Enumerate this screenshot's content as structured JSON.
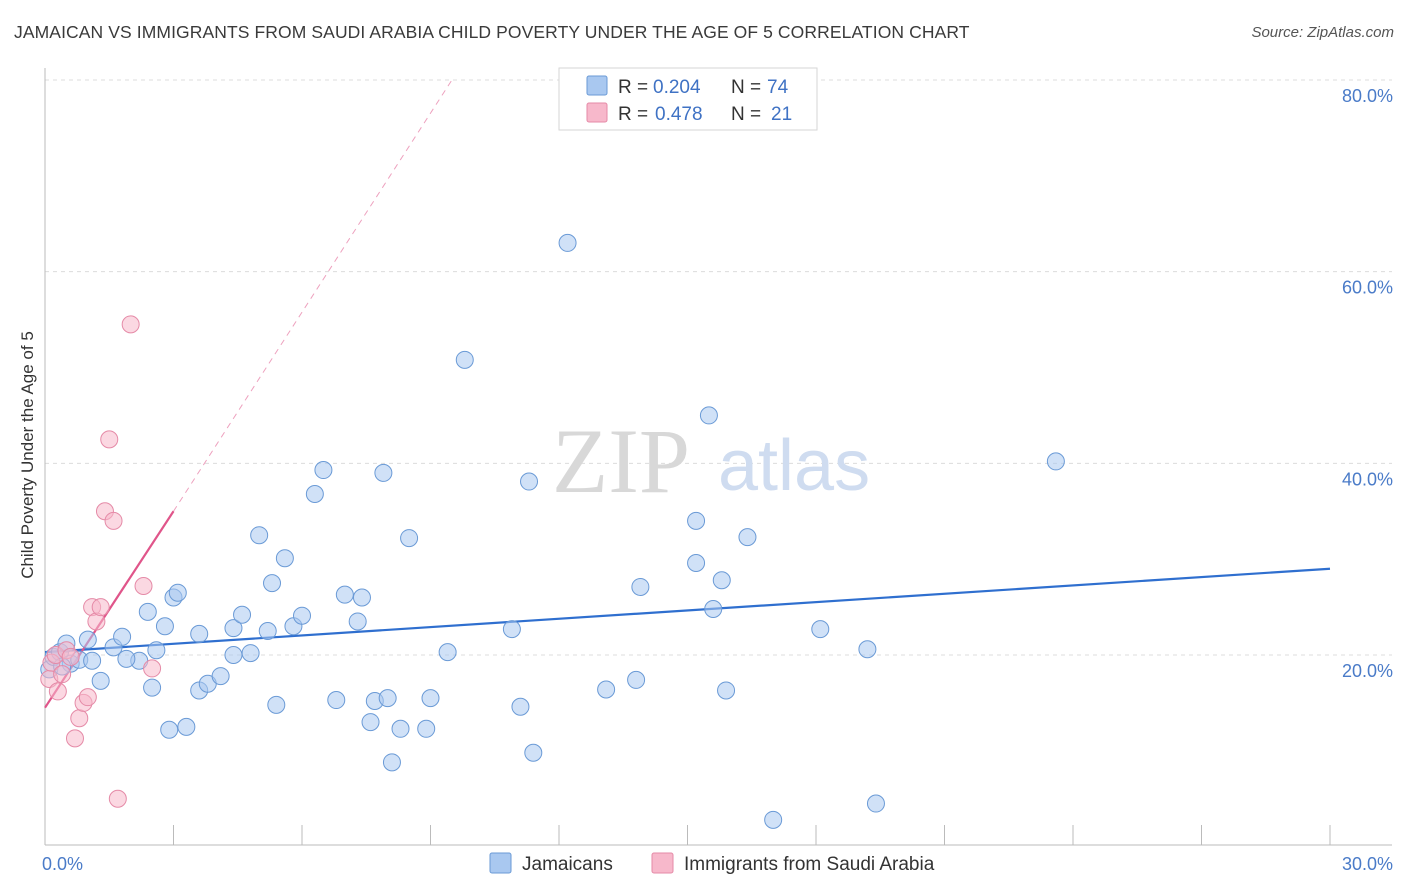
{
  "chart_data": {
    "type": "scatter",
    "title": "JAMAICAN VS IMMIGRANTS FROM SAUDI ARABIA CHILD POVERTY UNDER THE AGE OF 5 CORRELATION CHART",
    "source": "Source: ZipAtlas.com",
    "xlabel": "",
    "ylabel": "Child Poverty Under the Age of 5",
    "xlim": [
      0,
      30
    ],
    "ylim": [
      0,
      80
    ],
    "x_tick_labels": [
      {
        "value": 0,
        "label": "0.0%"
      },
      {
        "value": 30,
        "label": "30.0%"
      }
    ],
    "y_tick_labels": [
      {
        "value": 20,
        "label": "20.0%"
      },
      {
        "value": 40,
        "label": "40.0%"
      },
      {
        "value": 60,
        "label": "60.0%"
      },
      {
        "value": 80,
        "label": "80.0%"
      }
    ],
    "legend": [
      {
        "series": "Jamaicans",
        "r_label": "R =",
        "r_value": "0.204",
        "n_label": "N =",
        "n_value": "74",
        "color": "#a9c8f0"
      },
      {
        "series": "Immigrants from Saudi Arabia",
        "r_label": "R =",
        "r_value": "0.478",
        "n_label": "N =",
        "n_value": "21",
        "color": "#f7b8cb"
      }
    ],
    "watermark": {
      "zip": "ZIP",
      "atlas": "atlas"
    },
    "series": [
      {
        "name": "Jamaicans",
        "color": "#a9c8f0",
        "stroke": "#6a9ad6",
        "trend": {
          "x0": 0,
          "y0": 20.3,
          "x1": 30,
          "y1": 29.0,
          "color": "#2f6fcf"
        },
        "points": [
          [
            0.1,
            18.5
          ],
          [
            0.2,
            19.8
          ],
          [
            0.35,
            20.3
          ],
          [
            0.5,
            21.2
          ],
          [
            0.6,
            19.1
          ],
          [
            0.8,
            19.5
          ],
          [
            1.0,
            21.6
          ],
          [
            1.1,
            19.4
          ],
          [
            1.3,
            17.3
          ],
          [
            1.6,
            20.8
          ],
          [
            1.8,
            21.9
          ],
          [
            2.2,
            19.4
          ],
          [
            2.4,
            24.5
          ],
          [
            2.5,
            16.6
          ],
          [
            2.6,
            20.5
          ],
          [
            2.8,
            23.0
          ],
          [
            2.9,
            12.2
          ],
          [
            3.0,
            26.0
          ],
          [
            3.1,
            26.5
          ],
          [
            3.3,
            12.5
          ],
          [
            3.6,
            22.2
          ],
          [
            3.6,
            16.3
          ],
          [
            3.8,
            17.0
          ],
          [
            4.1,
            17.8
          ],
          [
            4.4,
            22.8
          ],
          [
            4.4,
            20.0
          ],
          [
            4.6,
            24.2
          ],
          [
            4.8,
            20.2
          ],
          [
            5.0,
            32.5
          ],
          [
            5.2,
            22.5
          ],
          [
            5.3,
            27.5
          ],
          [
            5.4,
            14.8
          ],
          [
            5.6,
            30.1
          ],
          [
            5.8,
            23.0
          ],
          [
            6.0,
            24.1
          ],
          [
            6.3,
            36.8
          ],
          [
            6.5,
            39.3
          ],
          [
            6.8,
            15.3
          ],
          [
            7.0,
            26.3
          ],
          [
            7.3,
            23.5
          ],
          [
            7.4,
            26.0
          ],
          [
            7.6,
            13.0
          ],
          [
            7.7,
            15.2
          ],
          [
            7.9,
            39.0
          ],
          [
            8.0,
            15.5
          ],
          [
            8.1,
            8.8
          ],
          [
            8.3,
            12.3
          ],
          [
            8.5,
            32.2
          ],
          [
            8.9,
            12.3
          ],
          [
            9.0,
            15.5
          ],
          [
            9.4,
            20.3
          ],
          [
            9.8,
            50.8
          ],
          [
            10.9,
            22.7
          ],
          [
            11.1,
            14.6
          ],
          [
            11.3,
            38.1
          ],
          [
            11.4,
            9.8
          ],
          [
            12.2,
            63.0
          ],
          [
            13.1,
            16.4
          ],
          [
            13.8,
            17.4
          ],
          [
            13.9,
            27.1
          ],
          [
            15.2,
            29.6
          ],
          [
            15.2,
            34.0
          ],
          [
            15.5,
            45.0
          ],
          [
            15.6,
            24.8
          ],
          [
            15.8,
            27.8
          ],
          [
            15.9,
            16.3
          ],
          [
            16.4,
            32.3
          ],
          [
            18.1,
            22.7
          ],
          [
            19.2,
            20.6
          ],
          [
            19.4,
            4.5
          ],
          [
            23.6,
            40.2
          ],
          [
            17.0,
            2.8
          ],
          [
            0.4,
            18.8
          ],
          [
            1.9,
            19.6
          ]
        ]
      },
      {
        "name": "Immigrants from Saudi Arabia",
        "color": "#f7b8cb",
        "stroke": "#e58aa7",
        "trend": {
          "x0": 0,
          "y0": 14.5,
          "x1": 3.0,
          "y1": 35.0,
          "x_ext": 9.5,
          "y_ext": 80,
          "color": "#e0558a"
        },
        "points": [
          [
            0.1,
            17.5
          ],
          [
            0.15,
            19.2
          ],
          [
            0.25,
            20.0
          ],
          [
            0.3,
            16.2
          ],
          [
            0.4,
            18.0
          ],
          [
            0.5,
            20.5
          ],
          [
            0.6,
            19.8
          ],
          [
            0.7,
            11.3
          ],
          [
            0.8,
            13.4
          ],
          [
            0.9,
            15.0
          ],
          [
            1.0,
            15.6
          ],
          [
            1.1,
            25.0
          ],
          [
            1.2,
            23.5
          ],
          [
            1.3,
            25.0
          ],
          [
            1.4,
            35.0
          ],
          [
            1.5,
            42.5
          ],
          [
            1.6,
            34.0
          ],
          [
            1.7,
            5.0
          ],
          [
            2.0,
            54.5
          ],
          [
            2.3,
            27.2
          ],
          [
            2.5,
            18.6
          ]
        ]
      }
    ]
  }
}
